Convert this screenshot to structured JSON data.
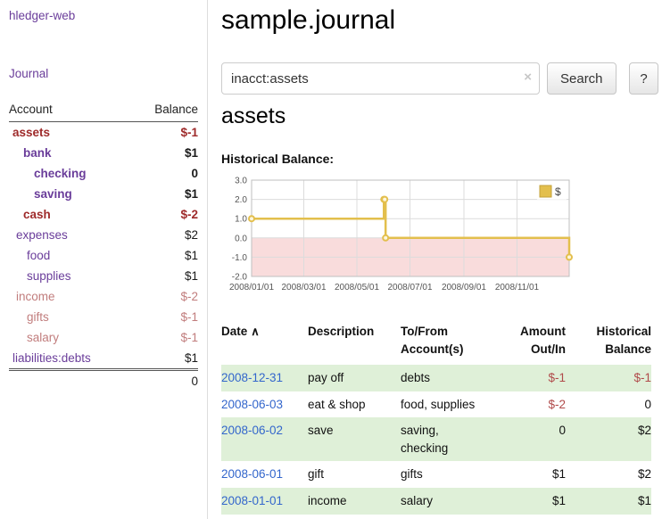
{
  "sidebar": {
    "app_title": "hledger-web",
    "nav": {
      "journal": "Journal"
    },
    "accounts": {
      "header": {
        "account": "Account",
        "balance": "Balance"
      },
      "rows": [
        {
          "name": "assets",
          "balance": "$-1"
        },
        {
          "name": "bank",
          "balance": "$1"
        },
        {
          "name": "checking",
          "balance": "0"
        },
        {
          "name": "saving",
          "balance": "$1"
        },
        {
          "name": "cash",
          "balance": "$-2"
        },
        {
          "name": "expenses",
          "balance": "$2"
        },
        {
          "name": "food",
          "balance": "$1"
        },
        {
          "name": "supplies",
          "balance": "$1"
        },
        {
          "name": "income",
          "balance": "$-2"
        },
        {
          "name": "gifts",
          "balance": "$-1"
        },
        {
          "name": "salary",
          "balance": "$-1"
        },
        {
          "name": "liabilities:debts",
          "balance": "$1"
        }
      ],
      "total": "0"
    }
  },
  "main": {
    "title": "sample.journal",
    "search": {
      "value": "inacct:assets",
      "clear_icon": "×",
      "search_button": "Search",
      "help_button": "?"
    },
    "account_heading": "assets",
    "section_label": "Historical Balance:"
  },
  "chart_data": {
    "type": "line",
    "title": "Historical Balance",
    "step": true,
    "legend": [
      {
        "label": "$",
        "color": "#e3bf4d"
      }
    ],
    "legend_position": "top-right",
    "grid": true,
    "x_range": [
      0,
      365
    ],
    "y_range": [
      -2,
      3
    ],
    "y_ticks": [
      3.0,
      2.0,
      1.0,
      0.0,
      -1.0,
      -2.0
    ],
    "x_ticks": [
      {
        "pos": 0,
        "label": "2008/01/01"
      },
      {
        "pos": 60,
        "label": "2008/03/01"
      },
      {
        "pos": 121,
        "label": "2008/05/01"
      },
      {
        "pos": 182,
        "label": "2008/07/01"
      },
      {
        "pos": 244,
        "label": "2008/09/01"
      },
      {
        "pos": 305,
        "label": "2008/11/01"
      }
    ],
    "series": [
      {
        "name": "$",
        "color": "#e3bf4d",
        "points": [
          {
            "date": "2008-01-01",
            "x": 0,
            "y": 1
          },
          {
            "date": "2008-06-01",
            "x": 152,
            "y": 2
          },
          {
            "date": "2008-06-02",
            "x": 153,
            "y": 2
          },
          {
            "date": "2008-06-03",
            "x": 154,
            "y": 0
          },
          {
            "date": "2008-12-31",
            "x": 365,
            "y": -1
          }
        ]
      }
    ],
    "negative_region_color": "#f9dcdc"
  },
  "register": {
    "columns": {
      "date": "Date",
      "sort_icon": "∧",
      "description": "Description",
      "account": "To/From Account(s)",
      "amount": "Amount Out/In",
      "balance": "Historical Balance"
    },
    "rows": [
      {
        "date": "2008-12-31",
        "description": "pay off",
        "account": "debts",
        "amount": "$-1",
        "balance": "$-1"
      },
      {
        "date": "2008-06-03",
        "description": "eat & shop",
        "account": "food, supplies",
        "amount": "$-2",
        "balance": "0"
      },
      {
        "date": "2008-06-02",
        "description": "save",
        "account": "saving, checking",
        "amount": "0",
        "balance": "$2"
      },
      {
        "date": "2008-06-01",
        "description": "gift",
        "account": "gifts",
        "amount": "$1",
        "balance": "$2"
      },
      {
        "date": "2008-01-01",
        "description": "income",
        "account": "salary",
        "amount": "$1",
        "balance": "$1"
      }
    ]
  },
  "colors": {
    "link_purple": "#6a3d9a",
    "negative_strong": "#9e2a2a",
    "negative_light": "#c17d7d",
    "date_link_blue": "#3366cc",
    "row_highlight_green": "#dff0d8",
    "chart_line_gold": "#e3bf4d",
    "chart_negative_region_pink": "#f9dcdc"
  }
}
